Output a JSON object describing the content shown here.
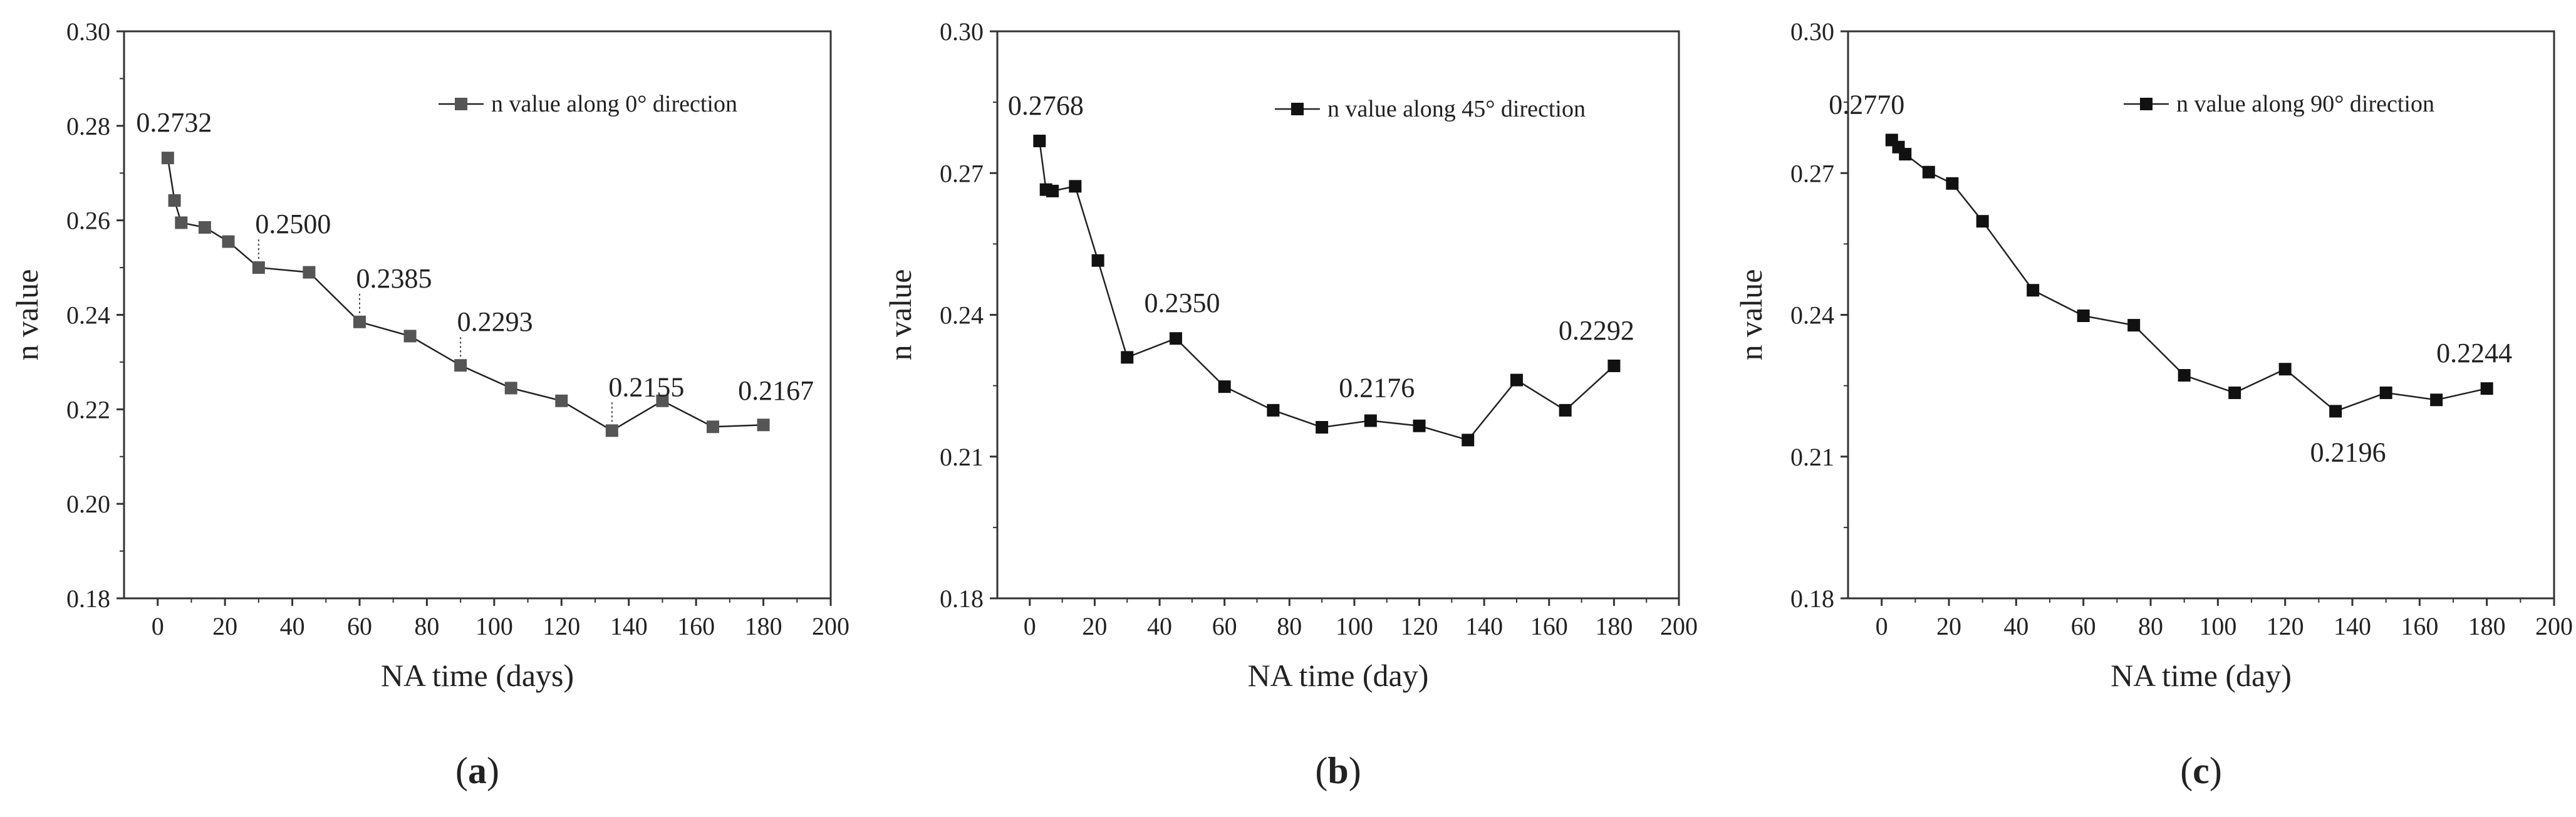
{
  "chart_data": [
    {
      "type": "line",
      "panel_label": "a",
      "xlabel": "NA time (days)",
      "ylabel": "n value",
      "xlim": [
        -10,
        200
      ],
      "ylim": [
        0.18,
        0.3
      ],
      "xticks": [
        0,
        20,
        40,
        60,
        80,
        100,
        120,
        140,
        160,
        180,
        200
      ],
      "yticks": [
        0.18,
        0.2,
        0.22,
        0.24,
        0.26,
        0.28,
        0.3
      ],
      "ytick_decimals": 2,
      "legend": "top-right",
      "series": [
        {
          "name": "n value along 0° direction",
          "color": "#555555",
          "x": [
            3,
            5,
            7,
            14,
            21,
            30,
            45,
            60,
            75,
            90,
            105,
            120,
            135,
            150,
            165,
            180
          ],
          "y": [
            0.2732,
            0.2642,
            0.2595,
            0.2585,
            0.2555,
            0.25,
            0.249,
            0.2385,
            0.2355,
            0.2293,
            0.2245,
            0.2218,
            0.2155,
            0.2218,
            0.2163,
            0.2167
          ]
        }
      ],
      "annotations": [
        {
          "text": "0.2732",
          "x": 3,
          "y": 0.2732
        },
        {
          "text": "0.2500",
          "x": 30,
          "y": 0.25
        },
        {
          "text": "0.2385",
          "x": 60,
          "y": 0.2385
        },
        {
          "text": "0.2293",
          "x": 90,
          "y": 0.2293
        },
        {
          "text": "0.2155",
          "x": 135,
          "y": 0.2155
        },
        {
          "text": "0.2167",
          "x": 180,
          "y": 0.2167
        }
      ]
    },
    {
      "type": "line",
      "panel_label": "b",
      "xlabel": "NA time (day)",
      "ylabel": "n value",
      "xlim": [
        -10,
        200
      ],
      "ylim": [
        0.18,
        0.3
      ],
      "xticks": [
        0,
        20,
        40,
        60,
        80,
        100,
        120,
        140,
        160,
        180,
        200
      ],
      "yticks": [
        0.18,
        0.21,
        0.24,
        0.27,
        0.3
      ],
      "ytick_decimals": 2,
      "legend": "top-right",
      "series": [
        {
          "name": "n value along 45° direction",
          "color": "#111111",
          "x": [
            3,
            5,
            7,
            14,
            21,
            30,
            45,
            60,
            75,
            90,
            105,
            120,
            135,
            150,
            165,
            180
          ],
          "y": [
            0.2768,
            0.2665,
            0.2662,
            0.2672,
            0.2515,
            0.231,
            0.235,
            0.2248,
            0.2198,
            0.2162,
            0.2176,
            0.2165,
            0.2135,
            0.2262,
            0.2198,
            0.2292
          ]
        }
      ],
      "annotations": [
        {
          "text": "0.2768",
          "x": 3,
          "y": 0.2768
        },
        {
          "text": "0.2350",
          "x": 45,
          "y": 0.235
        },
        {
          "text": "0.2176",
          "x": 105,
          "y": 0.2176
        },
        {
          "text": "0.2292",
          "x": 180,
          "y": 0.2292
        }
      ]
    },
    {
      "type": "line",
      "panel_label": "c",
      "xlabel": "NA time (day)",
      "ylabel": "n value",
      "xlim": [
        -10,
        200
      ],
      "ylim": [
        0.18,
        0.3
      ],
      "xticks": [
        0,
        20,
        40,
        60,
        80,
        100,
        120,
        140,
        160,
        180,
        200
      ],
      "yticks": [
        0.18,
        0.21,
        0.24,
        0.27,
        0.3
      ],
      "ytick_decimals": 2,
      "legend": "top-right",
      "series": [
        {
          "name": "n value along 90° direction",
          "color": "#111111",
          "x": [
            3,
            5,
            7,
            14,
            21,
            30,
            45,
            60,
            75,
            90,
            105,
            120,
            135,
            150,
            165,
            180
          ],
          "y": [
            0.277,
            0.2755,
            0.274,
            0.2702,
            0.2678,
            0.2598,
            0.2452,
            0.2398,
            0.2378,
            0.2272,
            0.2235,
            0.2285,
            0.2196,
            0.2235,
            0.222,
            0.2244
          ]
        }
      ],
      "annotations": [
        {
          "text": "0.2770",
          "x": 3,
          "y": 0.277
        },
        {
          "text": "0.2196",
          "x": 135,
          "y": 0.2196
        },
        {
          "text": "0.2244",
          "x": 180,
          "y": 0.2244
        }
      ]
    }
  ]
}
